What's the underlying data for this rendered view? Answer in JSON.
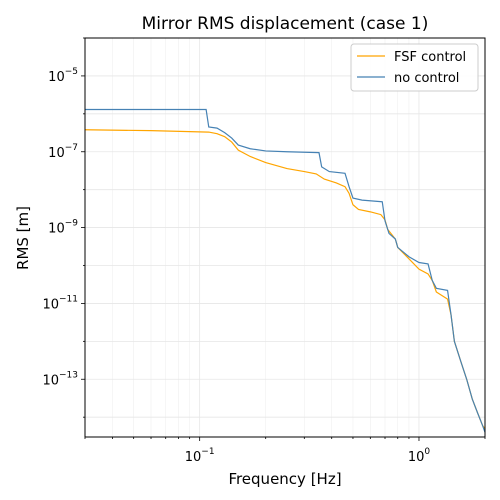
{
  "chart_data": {
    "type": "line",
    "title": "Mirror RMS displacement (case 1)",
    "xlabel": "Frequency [Hz]",
    "ylabel": "RMS [m]",
    "xscale": "log",
    "yscale": "log",
    "xlim": [
      0.03,
      2.0
    ],
    "ylim": [
      3e-15,
      0.0001
    ],
    "x_ticks": [
      {
        "value": 0.1,
        "base": "10",
        "exp": "−1"
      },
      {
        "value": 1.0,
        "base": "10",
        "exp": "0"
      }
    ],
    "y_ticks": [
      {
        "value": 1e-13,
        "base": "10",
        "exp": "−13"
      },
      {
        "value": 1e-11,
        "base": "10",
        "exp": "−11"
      },
      {
        "value": 1e-09,
        "base": "10",
        "exp": "−9"
      },
      {
        "value": 1e-07,
        "base": "10",
        "exp": "−7"
      },
      {
        "value": 1e-05,
        "base": "10",
        "exp": "−5"
      }
    ],
    "grid": true,
    "legend_position": "top-right",
    "series": [
      {
        "name": "FSF control",
        "color": "#ffa500",
        "points": [
          [
            0.03,
            3.8e-07
          ],
          [
            0.06,
            3.6e-07
          ],
          [
            0.09,
            3.4e-07
          ],
          [
            0.11,
            3.3e-07
          ],
          [
            0.12,
            3e-07
          ],
          [
            0.13,
            2.5e-07
          ],
          [
            0.14,
            1.8e-07
          ],
          [
            0.15,
            1.1e-07
          ],
          [
            0.17,
            7.5e-08
          ],
          [
            0.2,
            5.2e-08
          ],
          [
            0.25,
            3.6e-08
          ],
          [
            0.3,
            3e-08
          ],
          [
            0.34,
            2.6e-08
          ],
          [
            0.37,
            1.9e-08
          ],
          [
            0.42,
            1.5e-08
          ],
          [
            0.46,
            1.2e-08
          ],
          [
            0.48,
            8e-09
          ],
          [
            0.5,
            4e-09
          ],
          [
            0.53,
            3e-09
          ],
          [
            0.6,
            2.6e-09
          ],
          [
            0.67,
            2.2e-09
          ],
          [
            0.7,
            1.6e-09
          ],
          [
            0.72,
            9e-10
          ],
          [
            0.78,
            5e-10
          ],
          [
            0.8,
            3e-10
          ],
          [
            0.9,
            1.5e-10
          ],
          [
            1.0,
            8e-11
          ],
          [
            1.1,
            6e-11
          ],
          [
            1.15,
            4e-11
          ],
          [
            1.2,
            2e-11
          ],
          [
            1.35,
            1.3e-11
          ],
          [
            1.4,
            5e-12
          ],
          [
            1.45,
            1e-12
          ],
          [
            1.55,
            3e-13
          ],
          [
            1.65,
            1e-13
          ],
          [
            1.75,
            3e-14
          ],
          [
            1.85,
            1.3e-14
          ],
          [
            1.95,
            6e-15
          ],
          [
            2.0,
            5e-15
          ]
        ]
      },
      {
        "name": "no control",
        "color": "#4682b4",
        "points": [
          [
            0.03,
            1.3e-06
          ],
          [
            0.06,
            1.3e-06
          ],
          [
            0.107,
            1.3e-06
          ],
          [
            0.11,
            4.5e-07
          ],
          [
            0.12,
            4.2e-07
          ],
          [
            0.13,
            3.2e-07
          ],
          [
            0.14,
            2.3e-07
          ],
          [
            0.15,
            1.5e-07
          ],
          [
            0.17,
            1.2e-07
          ],
          [
            0.2,
            1.05e-07
          ],
          [
            0.25,
            1e-07
          ],
          [
            0.35,
            9.5e-08
          ],
          [
            0.36,
            4e-08
          ],
          [
            0.39,
            3e-08
          ],
          [
            0.46,
            2.7e-08
          ],
          [
            0.48,
            1.2e-08
          ],
          [
            0.5,
            6e-09
          ],
          [
            0.55,
            5.3e-09
          ],
          [
            0.68,
            4.8e-09
          ],
          [
            0.7,
            1.5e-09
          ],
          [
            0.73,
            7e-10
          ],
          [
            0.78,
            5e-10
          ],
          [
            0.8,
            3e-10
          ],
          [
            0.9,
            1.7e-10
          ],
          [
            1.0,
            1.2e-10
          ],
          [
            1.1,
            1.1e-10
          ],
          [
            1.15,
            4e-11
          ],
          [
            1.2,
            2.5e-11
          ],
          [
            1.35,
            2.2e-11
          ],
          [
            1.4,
            5e-12
          ],
          [
            1.45,
            1e-12
          ],
          [
            1.55,
            3e-13
          ],
          [
            1.65,
            1e-13
          ],
          [
            1.75,
            3e-14
          ],
          [
            1.85,
            1.3e-14
          ],
          [
            1.95,
            6e-15
          ],
          [
            2.0,
            4e-15
          ]
        ]
      }
    ]
  }
}
